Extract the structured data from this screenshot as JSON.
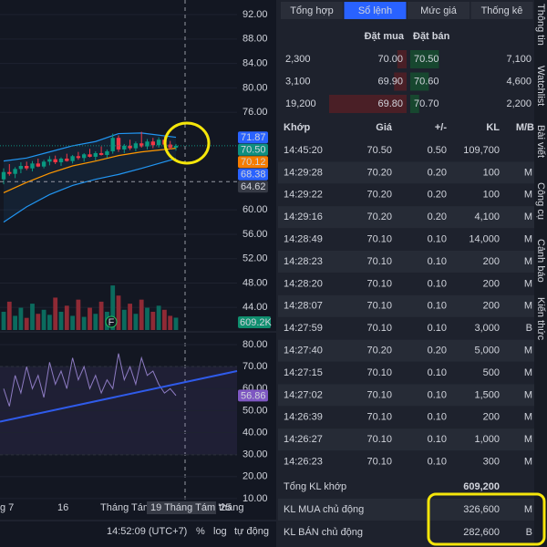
{
  "chart": {
    "type": "candlestick",
    "ylim": [
      40.3,
      94.4
    ],
    "yticks": [
      {
        "value": 92,
        "label": "92.00"
      },
      {
        "value": 88,
        "label": "88.00"
      },
      {
        "value": 84,
        "label": "84.00"
      },
      {
        "value": 80,
        "label": "80.00"
      },
      {
        "value": 76,
        "label": "76.00"
      },
      {
        "value": 60,
        "label": "60.00"
      },
      {
        "value": 56,
        "label": "56.00"
      },
      {
        "value": 52,
        "label": "52.00"
      },
      {
        "value": 48,
        "label": "48.00"
      },
      {
        "value": 44,
        "label": "44.00"
      }
    ],
    "candles": [
      [
        65.0,
        66.8,
        64.2,
        66.2
      ],
      [
        66.2,
        67.5,
        65.6,
        65.9
      ],
      [
        65.9,
        67.0,
        65.2,
        66.7
      ],
      [
        66.7,
        67.8,
        66.0,
        67.2
      ],
      [
        67.2,
        67.9,
        66.5,
        66.8
      ],
      [
        66.8,
        68.0,
        66.3,
        67.6
      ],
      [
        67.6,
        68.4,
        67.0,
        67.1
      ],
      [
        67.1,
        68.2,
        66.8,
        67.9
      ],
      [
        67.9,
        68.8,
        67.3,
        68.3
      ],
      [
        68.3,
        68.9,
        67.5,
        67.8
      ],
      [
        67.8,
        68.6,
        67.2,
        68.4
      ],
      [
        68.4,
        69.2,
        67.9,
        68.0
      ],
      [
        68.0,
        69.0,
        67.6,
        68.8
      ],
      [
        68.8,
        69.5,
        68.2,
        68.5
      ],
      [
        68.5,
        69.3,
        67.9,
        69.1
      ],
      [
        69.1,
        70.0,
        68.6,
        68.7
      ],
      [
        68.7,
        69.6,
        68.1,
        69.3
      ],
      [
        69.3,
        70.4,
        68.9,
        69.0
      ],
      [
        69.0,
        69.9,
        68.5,
        69.6
      ],
      [
        69.6,
        72.5,
        69.2,
        71.8
      ],
      [
        71.8,
        72.2,
        69.5,
        69.9
      ],
      [
        69.9,
        70.8,
        69.3,
        70.5
      ],
      [
        70.5,
        71.5,
        69.8,
        70.1
      ],
      [
        70.1,
        71.2,
        69.6,
        70.9
      ],
      [
        70.9,
        72.8,
        70.2,
        70.4
      ],
      [
        70.4,
        71.6,
        69.9,
        71.2
      ],
      [
        71.2,
        71.8,
        70.1,
        70.6
      ],
      [
        70.6,
        71.9,
        70.2,
        71.5
      ],
      [
        71.5,
        72.0,
        70.3,
        70.7
      ],
      [
        70.7,
        71.3,
        69.9,
        70.2
      ],
      [
        70.2,
        70.8,
        69.7,
        70.5
      ]
    ],
    "bands": {
      "index": [
        0,
        4,
        8,
        12,
        16,
        20,
        24,
        30
      ],
      "upper": [
        68.0,
        68.5,
        69.5,
        70.5,
        71.2,
        72.5,
        72.6,
        71.9
      ],
      "middle": [
        62.8,
        64.5,
        66.0,
        67.2,
        68.0,
        68.9,
        69.5,
        70.1
      ],
      "lower": [
        58.0,
        60.5,
        62.5,
        64.0,
        65.0,
        65.8,
        66.8,
        68.4
      ]
    },
    "price_tags": [
      {
        "value": 71.87,
        "label": "71.87",
        "color": "#2962ff"
      },
      {
        "value": 70.5,
        "label": "70.50",
        "color": "#0f8f7f"
      },
      {
        "value": 70.12,
        "label": "70.12",
        "color": "#f57c00"
      },
      {
        "value": 68.38,
        "label": "68.38",
        "color": "#2962ff"
      },
      {
        "value": 64.62,
        "label": "64.62",
        "color": "#363a45"
      }
    ],
    "volumes": [
      900000,
      1400000,
      700000,
      1100000,
      600000,
      1300000,
      800000,
      1000000,
      750000,
      1600000,
      900000,
      1200000,
      700000,
      1500000,
      650000,
      1100000,
      800000,
      1400000,
      900000,
      2200000,
      1700000,
      1000000,
      1300000,
      800000,
      1500000,
      1100000,
      900000,
      1200000,
      1000000,
      700000,
      609200
    ],
    "vlim": [
      0,
      3600000
    ],
    "volume_tag": {
      "value": 609200,
      "label": "609.2K"
    },
    "rsi": {
      "ylim": [
        2.5,
        85
      ],
      "yticks": [
        {
          "value": 80,
          "label": "80.00"
        },
        {
          "value": 70,
          "label": "70.00"
        },
        {
          "value": 60,
          "label": "60.00"
        },
        {
          "value": 50,
          "label": "50.00"
        },
        {
          "value": 40,
          "label": "40.00"
        },
        {
          "value": 30,
          "label": "30.00"
        },
        {
          "value": 20,
          "label": "20.00"
        },
        {
          "value": 10,
          "label": "10.00"
        }
      ],
      "values": [
        60,
        52,
        66,
        58,
        70,
        60,
        66,
        56,
        72,
        62,
        68,
        60,
        74,
        64,
        70,
        60,
        66,
        58,
        64,
        60,
        76,
        64,
        70,
        62,
        74,
        66,
        68,
        62,
        58,
        60,
        56.86
      ],
      "levels": [
        30,
        70
      ],
      "trend": [
        45,
        68
      ],
      "tag": {
        "value": 56.86,
        "label": "56.86"
      }
    },
    "time_labels": [
      "g 7",
      "16",
      "Tháng Tám",
      "19 Tháng Tám '25",
      "tháng"
    ],
    "toolbar": [
      "14:52:09 (UTC+7)",
      "%",
      "log",
      "tự động"
    ]
  },
  "tabs": [
    "Tổng hợp",
    "Sổ lệnh",
    "Mức giá",
    "Thống kê"
  ],
  "active_tab": 1,
  "side_tabs": [
    "Thông tin",
    "Watchlist",
    "Bài viết",
    "Công cụ",
    "Cảnh báo",
    "Kiến thức"
  ],
  "order_book": {
    "headers": [
      "Đặt mua",
      "Đặt bán"
    ],
    "rows": [
      [
        "2,300",
        "70.00",
        "70.50",
        "7,100"
      ],
      [
        "3,100",
        "69.90",
        "70.60",
        "4,600"
      ],
      [
        "19,200",
        "69.80",
        "70.70",
        "2,200"
      ]
    ]
  },
  "trades": {
    "headers": [
      "Khớp",
      "Giá",
      "+/-",
      "KL",
      "M/B"
    ],
    "rows": [
      [
        "14:45:20",
        "70.50",
        "0.50",
        "109,700"
      ],
      [
        "14:29:28",
        "70.20",
        "0.20",
        "100",
        "M"
      ],
      [
        "14:29:22",
        "70.20",
        "0.20",
        "100",
        "M"
      ],
      [
        "14:29:16",
        "70.20",
        "0.20",
        "4,100",
        "M"
      ],
      [
        "14:28:49",
        "70.10",
        "0.10",
        "14,000",
        "M"
      ],
      [
        "14:28:23",
        "70.10",
        "0.10",
        "200",
        "M"
      ],
      [
        "14:28:20",
        "70.10",
        "0.10",
        "200",
        "M"
      ],
      [
        "14:28:07",
        "70.10",
        "0.10",
        "200",
        "M"
      ],
      [
        "14:27:59",
        "70.10",
        "0.10",
        "3,000",
        "B"
      ],
      [
        "14:27:40",
        "70.20",
        "0.20",
        "5,000",
        "M"
      ],
      [
        "14:27:15",
        "70.10",
        "0.10",
        "500",
        "M"
      ],
      [
        "14:27:02",
        "70.10",
        "0.10",
        "1,500",
        "M"
      ],
      [
        "14:26:39",
        "70.10",
        "0.10",
        "200",
        "M"
      ],
      [
        "14:26:27",
        "70.10",
        "0.10",
        "1,000",
        "M"
      ],
      [
        "14:26:23",
        "70.10",
        "0.10",
        "300",
        "M"
      ]
    ]
  },
  "summary": [
    {
      "label": "Tổng KL khớp",
      "value": "609,200"
    },
    {
      "label": "KL MUA chủ động",
      "value": "326,600",
      "side": "M"
    },
    {
      "label": "KL BÁN chủ động",
      "value": "282,600",
      "side": "B"
    }
  ]
}
